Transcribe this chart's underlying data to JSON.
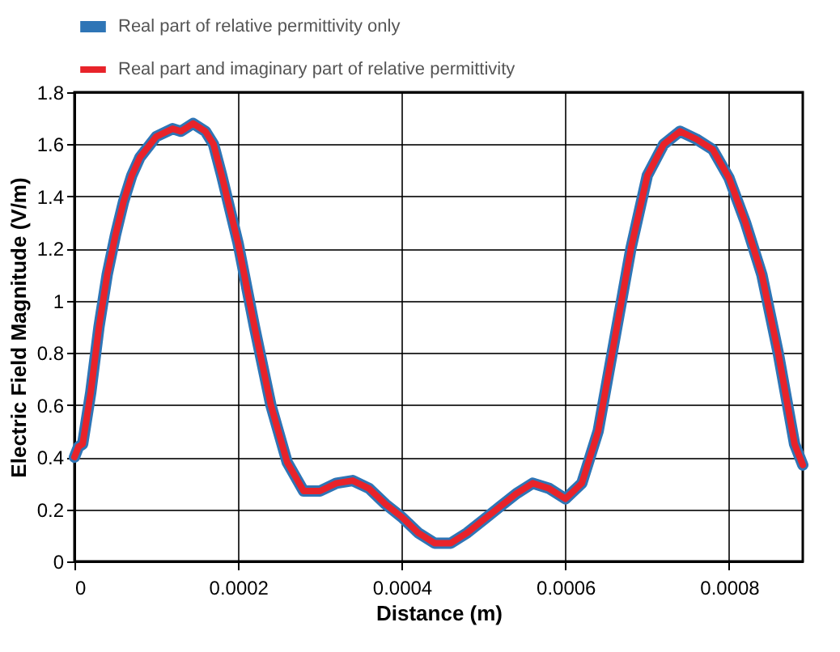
{
  "chart_data": {
    "type": "line",
    "xlabel": "Distance (m)",
    "ylabel": "Electric Field Magnitude (V/m)",
    "x": [
      0,
      5e-06,
      1e-05,
      2e-05,
      3e-05,
      4e-05,
      5e-05,
      6e-05,
      7e-05,
      8e-05,
      0.0001,
      0.00012,
      0.00013,
      0.000145,
      0.00016,
      0.00017,
      0.00018,
      0.0002,
      0.00022,
      0.00024,
      0.00026,
      0.00028,
      0.0003,
      0.00032,
      0.00034,
      0.00036,
      0.00038,
      0.0004,
      0.00042,
      0.00044,
      0.00046,
      0.00048,
      0.0005,
      0.00052,
      0.00054,
      0.00056,
      0.00058,
      0.0006,
      0.00062,
      0.00064,
      0.00066,
      0.00068,
      0.0007,
      0.00072,
      0.00074,
      0.00076,
      0.00078,
      0.0008,
      0.00082,
      0.00084,
      0.00086,
      0.00088,
      0.00089
    ],
    "series": [
      {
        "name": "Real part of relative permittivity only",
        "color": "#2e75b6",
        "values": [
          0.4,
          0.44,
          0.45,
          0.65,
          0.9,
          1.1,
          1.25,
          1.38,
          1.48,
          1.55,
          1.63,
          1.66,
          1.65,
          1.68,
          1.65,
          1.6,
          1.48,
          1.22,
          0.9,
          0.6,
          0.38,
          0.27,
          0.27,
          0.3,
          0.31,
          0.28,
          0.22,
          0.17,
          0.11,
          0.07,
          0.07,
          0.11,
          0.16,
          0.21,
          0.26,
          0.3,
          0.28,
          0.24,
          0.3,
          0.5,
          0.85,
          1.2,
          1.48,
          1.6,
          1.65,
          1.62,
          1.58,
          1.47,
          1.3,
          1.1,
          0.8,
          0.45,
          0.37
        ]
      },
      {
        "name": "Real part and imaginary part of relative permittivity",
        "color": "#e8232a",
        "values": [
          0.4,
          0.44,
          0.45,
          0.65,
          0.9,
          1.1,
          1.25,
          1.38,
          1.48,
          1.55,
          1.63,
          1.66,
          1.65,
          1.68,
          1.65,
          1.6,
          1.48,
          1.22,
          0.9,
          0.6,
          0.38,
          0.27,
          0.27,
          0.3,
          0.31,
          0.28,
          0.22,
          0.17,
          0.11,
          0.07,
          0.07,
          0.11,
          0.16,
          0.21,
          0.26,
          0.3,
          0.28,
          0.24,
          0.3,
          0.5,
          0.85,
          1.2,
          1.48,
          1.6,
          1.65,
          1.62,
          1.58,
          1.47,
          1.3,
          1.1,
          0.8,
          0.45,
          0.37
        ]
      }
    ],
    "xlim": [
      0,
      0.00089
    ],
    "xticks": [
      0,
      0.0002,
      0.0004,
      0.0006,
      0.0008
    ],
    "ylim": [
      0,
      1.8
    ],
    "yticks": [
      0,
      0.2,
      0.4,
      0.6,
      0.8,
      1,
      1.2,
      1.4,
      1.6,
      1.8
    ],
    "grid": true,
    "legend": "top",
    "line_style": "solid",
    "marker": "none"
  }
}
